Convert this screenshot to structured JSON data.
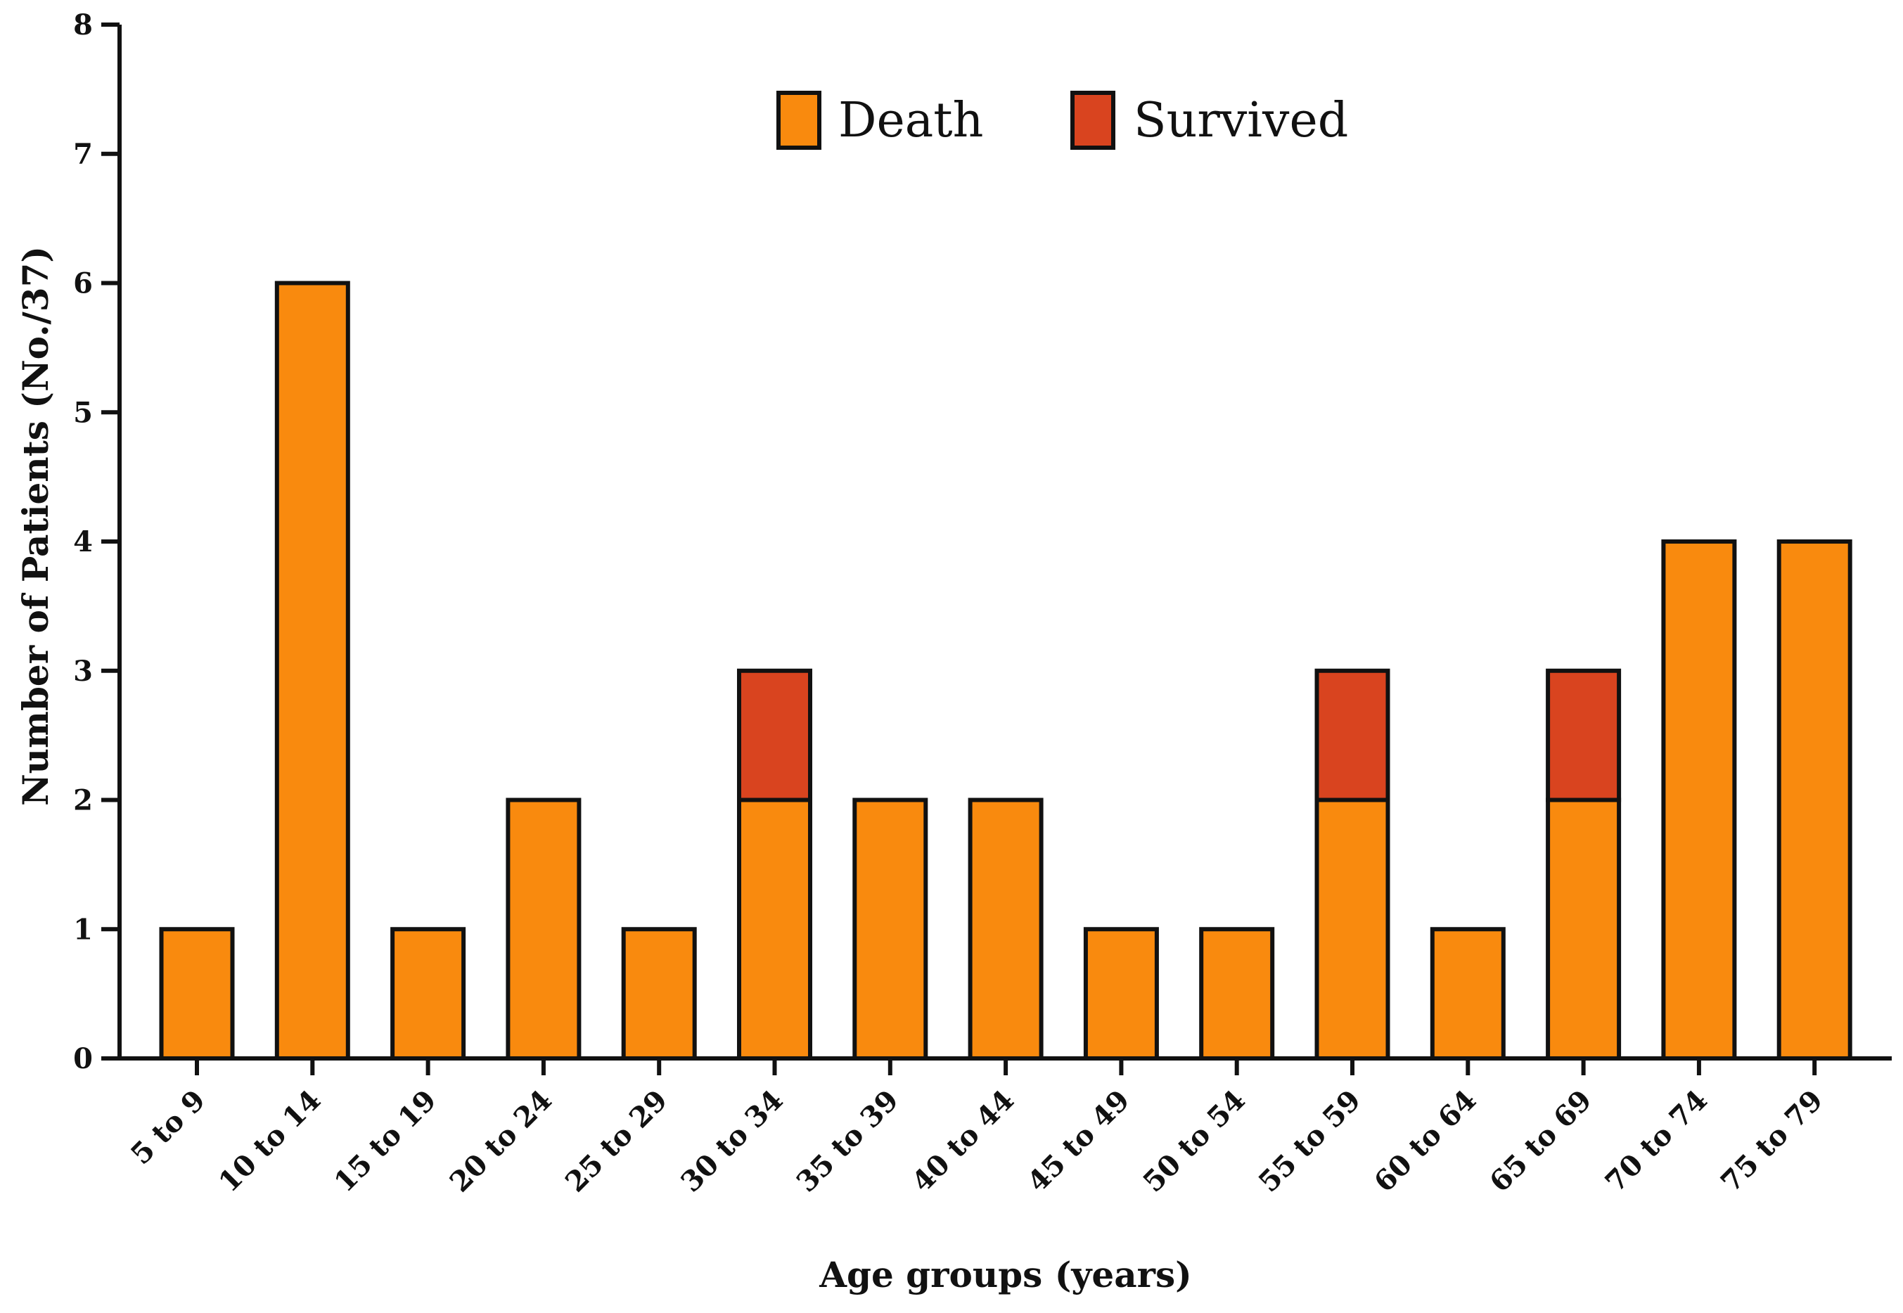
{
  "chart_data": {
    "type": "bar",
    "stacked": true,
    "title": "",
    "xlabel": "Age groups (years)",
    "ylabel": "Number of Patients (No./37)",
    "ylim": [
      0,
      8
    ],
    "yticks": [
      0,
      1,
      2,
      3,
      4,
      5,
      6,
      7,
      8
    ],
    "categories": [
      "5 to 9",
      "10 to 14",
      "15 to 19",
      "20 to 24",
      "25 to 29",
      "30 to 34",
      "35 to 39",
      "40 to 44",
      "45 to 49",
      "50 to 54",
      "55 to 59",
      "60 to 64",
      "65 to 69",
      "70 to 74",
      "75 to 79"
    ],
    "series": [
      {
        "name": "Death",
        "color": "#F98A0E",
        "values": [
          1,
          6,
          1,
          2,
          1,
          2,
          2,
          2,
          1,
          1,
          2,
          1,
          2,
          4,
          4
        ]
      },
      {
        "name": "Survived",
        "color": "#D9441F",
        "values": [
          0,
          0,
          0,
          0,
          0,
          1,
          0,
          0,
          0,
          0,
          1,
          0,
          1,
          0,
          0
        ]
      }
    ],
    "legend_position": "top-center",
    "grid": false
  }
}
